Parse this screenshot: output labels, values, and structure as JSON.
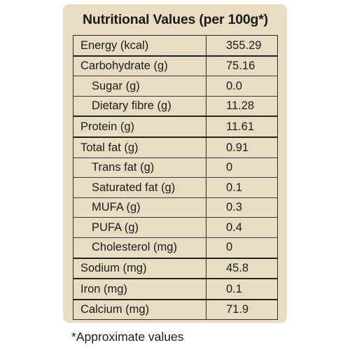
{
  "panel": {
    "title": "Nutritional Values (per 100g*)",
    "background_color": "#e8dcc2"
  },
  "table": {
    "rows": [
      {
        "name": "Energy (kcal)",
        "value": "355.29",
        "indent": false,
        "divider": "group"
      },
      {
        "name": "Carbohydrate (g)",
        "value": "75.16",
        "indent": false,
        "divider": "line"
      },
      {
        "name": "Sugar (g)",
        "value": "0.0",
        "indent": true,
        "divider": "line"
      },
      {
        "name": "Dietary fibre (g)",
        "value": "11.28",
        "indent": true,
        "divider": "group"
      },
      {
        "name": "Protein (g)",
        "value": "11.61",
        "indent": false,
        "divider": "group"
      },
      {
        "name": "Total fat (g)",
        "value": "0.91",
        "indent": false,
        "divider": "line"
      },
      {
        "name": "Trans fat (g)",
        "value": "0",
        "indent": true,
        "divider": "line"
      },
      {
        "name": "Saturated fat (g)",
        "value": "0.1",
        "indent": true,
        "divider": "line"
      },
      {
        "name": "MUFA (g)",
        "value": "0.3",
        "indent": true,
        "divider": "line"
      },
      {
        "name": "PUFA (g)",
        "value": "0.4",
        "indent": true,
        "divider": "line"
      },
      {
        "name": "Cholesterol (mg)",
        "value": "0",
        "indent": true,
        "divider": "group"
      },
      {
        "name": "Sodium (mg)",
        "value": "45.8",
        "indent": false,
        "divider": "group"
      },
      {
        "name": "Iron (mg)",
        "value": "0.1",
        "indent": false,
        "divider": "group"
      },
      {
        "name": "Calcium (mg)",
        "value": "71.9",
        "indent": false,
        "divider": "none"
      }
    ]
  },
  "footnote": "*Approximate values"
}
